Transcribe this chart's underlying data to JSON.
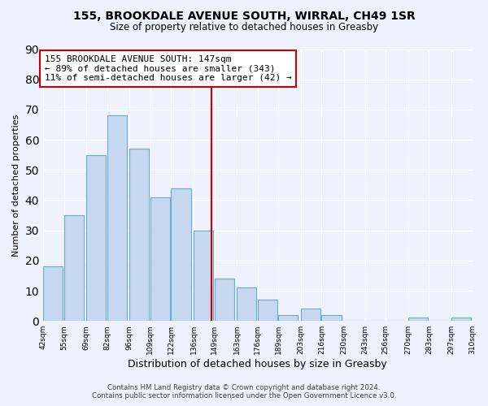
{
  "title": "155, BROOKDALE AVENUE SOUTH, WIRRAL, CH49 1SR",
  "subtitle": "Size of property relative to detached houses in Greasby",
  "xlabel": "Distribution of detached houses by size in Greasby",
  "ylabel": "Number of detached properties",
  "bins": [
    42,
    55,
    69,
    82,
    96,
    109,
    122,
    136,
    149,
    163,
    176,
    189,
    203,
    216,
    230,
    243,
    256,
    270,
    283,
    297,
    310
  ],
  "counts": [
    18,
    35,
    55,
    68,
    57,
    41,
    44,
    30,
    14,
    11,
    7,
    2,
    4,
    2,
    0,
    0,
    0,
    1,
    0,
    1
  ],
  "bar_color": "#c5d8f0",
  "bar_edge_color": "#6aaad4",
  "property_size": 147,
  "property_line_color": "#cc0000",
  "annotation_text": "155 BROOKDALE AVENUE SOUTH: 147sqm\n← 89% of detached houses are smaller (343)\n11% of semi-detached houses are larger (42) →",
  "annotation_box_color": "#ffffff",
  "annotation_box_edge": "#cc0000",
  "ylim": [
    0,
    90
  ],
  "yticks": [
    0,
    10,
    20,
    30,
    40,
    50,
    60,
    70,
    80,
    90
  ],
  "footer_line1": "Contains HM Land Registry data © Crown copyright and database right 2024.",
  "footer_line2": "Contains public sector information licensed under the Open Government Licence v3.0.",
  "bg_color": "#eef2fc",
  "tick_labels": [
    "42sqm",
    "55sqm",
    "69sqm",
    "82sqm",
    "96sqm",
    "109sqm",
    "122sqm",
    "136sqm",
    "149sqm",
    "163sqm",
    "176sqm",
    "189sqm",
    "203sqm",
    "216sqm",
    "230sqm",
    "243sqm",
    "256sqm",
    "270sqm",
    "283sqm",
    "297sqm",
    "310sqm"
  ],
  "title_fontsize": 10,
  "subtitle_fontsize": 8.5,
  "ylabel_fontsize": 8,
  "xlabel_fontsize": 9,
  "tick_fontsize": 6.5,
  "footer_fontsize": 6.2,
  "annotation_fontsize": 8
}
